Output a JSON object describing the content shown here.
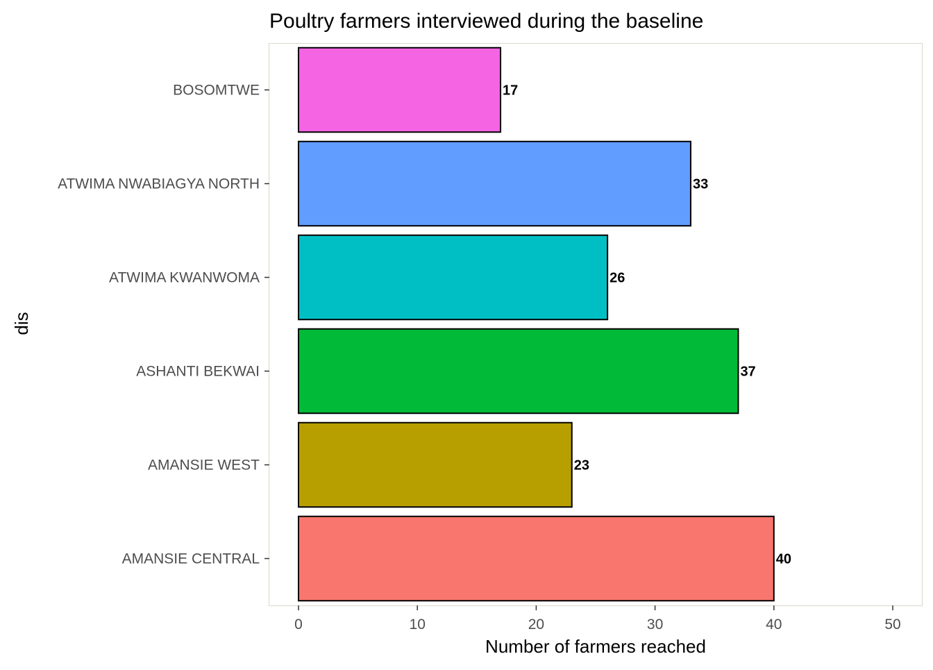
{
  "chart_data": {
    "type": "bar",
    "orientation": "horizontal",
    "title": "Poultry farmers interviewed during the baseline",
    "xlabel": "Number of farmers reached",
    "ylabel": "dis",
    "categories": [
      "AMANSIE CENTRAL",
      "AMANSIE WEST",
      "ASHANTI BEKWAI",
      "ATWIMA KWANWOMA",
      "ATWIMA NWABIAGYA NORTH",
      "BOSOMTWE"
    ],
    "values": [
      40,
      23,
      37,
      26,
      33,
      17
    ],
    "colors": [
      "#F8766D",
      "#B79F00",
      "#00BA38",
      "#00BFC4",
      "#619CFF",
      "#F564E3"
    ],
    "xlim": [
      0,
      50
    ],
    "xticks": [
      0,
      10,
      20,
      30,
      40,
      50
    ],
    "grid": false,
    "legend": "none"
  }
}
